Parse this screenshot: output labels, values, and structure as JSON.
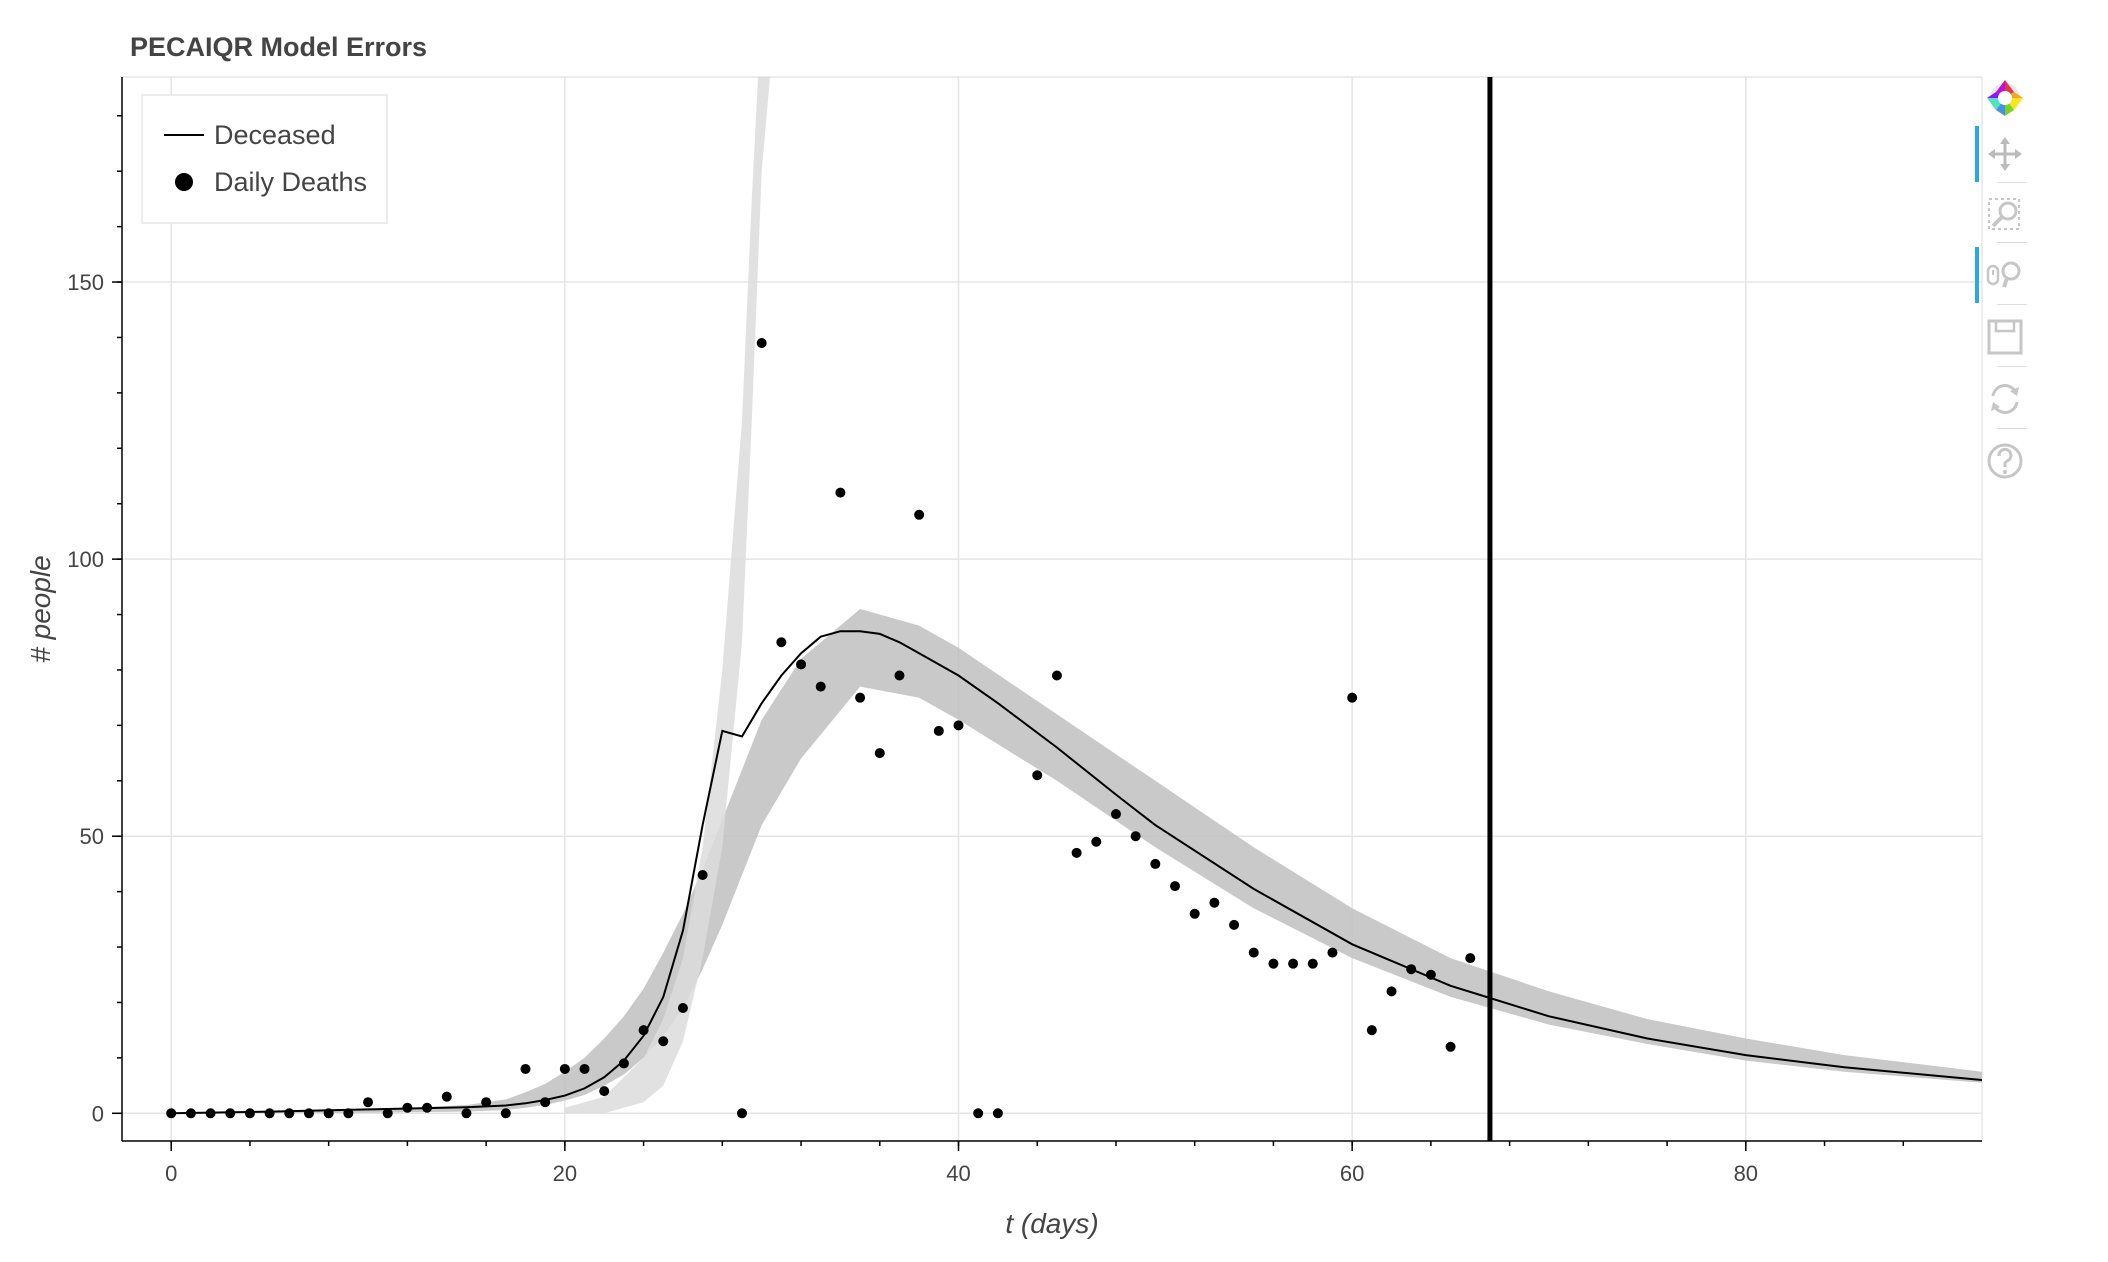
{
  "title": "PECAIQR Model Errors",
  "colors": {
    "line": "#000000",
    "points": "#000000",
    "band": "#bdbdbd",
    "grid": "#e5e5e5",
    "axis": "#444444",
    "toolbar_active": "#26aae1",
    "toolbar_icon": "#c6c6c6"
  },
  "toolbar": {
    "tools": [
      {
        "name": "bokeh-logo-icon",
        "active": false
      },
      {
        "name": "pan-icon",
        "active": true
      },
      {
        "name": "box-zoom-icon",
        "active": false
      },
      {
        "name": "wheel-zoom-icon",
        "active": true
      },
      {
        "name": "save-icon",
        "active": false
      },
      {
        "name": "reset-icon",
        "active": false
      },
      {
        "name": "help-icon",
        "active": false
      }
    ]
  },
  "chart_data": {
    "type": "line",
    "title": "PECAIQR Model Errors",
    "xlabel": "t (days)",
    "ylabel": "# people",
    "xlim": [
      -2.5,
      92
    ],
    "ylim": [
      -5,
      187
    ],
    "x_ticks": [
      0,
      20,
      40,
      60,
      80
    ],
    "y_ticks": [
      0,
      50,
      100,
      150
    ],
    "grid": true,
    "legend": {
      "position": "top-left",
      "entries": [
        {
          "label": "Deceased",
          "glyph": "line"
        },
        {
          "label": "Daily Deaths",
          "glyph": "circle"
        }
      ]
    },
    "vertical_line_x": 67,
    "series": [
      {
        "name": "Deceased",
        "kind": "line",
        "x": [
          0,
          5,
          10,
          15,
          17,
          18,
          19,
          20,
          21,
          22,
          23,
          24,
          25,
          26,
          27,
          28,
          29,
          30,
          31,
          32,
          33,
          34,
          35,
          36,
          37,
          38,
          40,
          42,
          45,
          48,
          50,
          55,
          60,
          65,
          67,
          70,
          75,
          80,
          85,
          92
        ],
        "y": [
          0,
          0.3,
          0.7,
          1.1,
          1.4,
          1.8,
          2.4,
          3.2,
          4.5,
          6.5,
          9.5,
          14,
          21,
          33,
          52,
          69,
          68,
          74,
          79,
          83,
          86,
          87,
          87,
          86.5,
          85,
          83,
          79,
          74,
          66,
          57.5,
          52,
          40.5,
          30.5,
          23,
          20.8,
          17.5,
          13.5,
          10.5,
          8.3,
          6
        ]
      },
      {
        "name": "Daily Deaths",
        "kind": "scatter",
        "x": [
          0,
          1,
          2,
          3,
          4,
          5,
          6,
          7,
          8,
          9,
          10,
          11,
          12,
          13,
          14,
          15,
          16,
          17,
          18,
          19,
          20,
          21,
          22,
          23,
          24,
          25,
          26,
          27,
          29,
          30,
          31,
          32,
          33,
          34,
          35,
          36,
          37,
          38,
          39,
          40,
          41,
          42,
          44,
          45,
          46,
          47,
          48,
          49,
          50,
          51,
          52,
          53,
          54,
          55,
          56,
          57,
          58,
          59,
          60,
          61,
          62,
          63,
          64,
          65,
          66
        ],
        "y": [
          0,
          0,
          0,
          0,
          0,
          0,
          0,
          0,
          0,
          0,
          2,
          0,
          1,
          1,
          3,
          0,
          2,
          0,
          8,
          2,
          8,
          8,
          4,
          9,
          15,
          13,
          19,
          43,
          0,
          139,
          85,
          81,
          77,
          112,
          75,
          65,
          79,
          108,
          69,
          70,
          0,
          0,
          61,
          79,
          47,
          49,
          54,
          50,
          45,
          41,
          36,
          38,
          34,
          29,
          27,
          27,
          27,
          29,
          75,
          15,
          22,
          26,
          25,
          12,
          28
        ]
      },
      {
        "kind": "band",
        "x": [
          0,
          10,
          15,
          17,
          18,
          19,
          20,
          21,
          22,
          23,
          24,
          25,
          26,
          27,
          28,
          29,
          30,
          32,
          35,
          38,
          40,
          45,
          50,
          55,
          60,
          65,
          70,
          75,
          80,
          85,
          92
        ],
        "lower": [
          0,
          0.1,
          0.3,
          0.6,
          1,
          1.5,
          2.3,
          3.3,
          5,
          7,
          10,
          14,
          19,
          26,
          34,
          43,
          52,
          64,
          77,
          75,
          71,
          60,
          48,
          37,
          28,
          21,
          16,
          12.5,
          9.5,
          7.5,
          5.5
        ],
        "upper": [
          0,
          0.6,
          1.5,
          2.5,
          3.8,
          5.3,
          7.5,
          10,
          13.5,
          17.5,
          22.5,
          29,
          36,
          44,
          53,
          62,
          71,
          82,
          91,
          88,
          84,
          72,
          60,
          48,
          37,
          28,
          22,
          17,
          13.5,
          10.5,
          7.5
        ]
      },
      {
        "kind": "band",
        "x": [
          20,
          22,
          24,
          25,
          26,
          27,
          28,
          29,
          29.5,
          30,
          30.5
        ],
        "lower": [
          0,
          0,
          2,
          5,
          13,
          28,
          48,
          85,
          125,
          170,
          190
        ],
        "upper": [
          1,
          3,
          10,
          17,
          28,
          48,
          80,
          125,
          165,
          200,
          220
        ]
      }
    ]
  }
}
